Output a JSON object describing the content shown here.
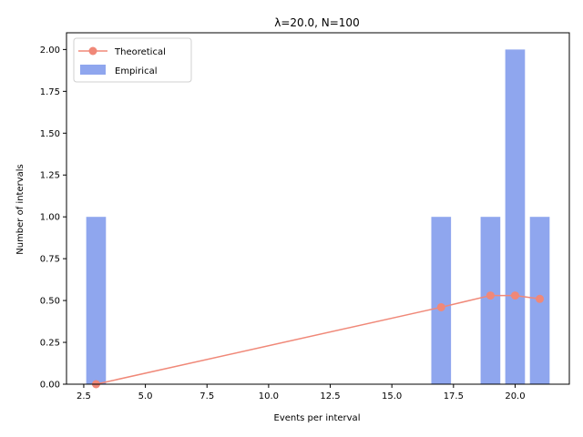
{
  "chart_data": {
    "type": "bar",
    "title": "λ=20.0, N=100",
    "xlabel": "Events per interval",
    "ylabel": "Number of intervals",
    "xlim": [
      1.8,
      22.2
    ],
    "ylim": [
      0.0,
      2.1
    ],
    "xticks": [
      2.5,
      5.0,
      7.5,
      10.0,
      12.5,
      15.0,
      17.5,
      20.0
    ],
    "xtick_labels": [
      "2.5",
      "5.0",
      "7.5",
      "10.0",
      "12.5",
      "15.0",
      "17.5",
      "20.0"
    ],
    "yticks": [
      0.0,
      0.25,
      0.5,
      0.75,
      1.0,
      1.25,
      1.5,
      1.75,
      2.0
    ],
    "ytick_labels": [
      "0.00",
      "0.25",
      "0.50",
      "0.75",
      "1.00",
      "1.25",
      "1.50",
      "1.75",
      "2.00"
    ],
    "grid": false,
    "legend_position": "top-left",
    "series": [
      {
        "name": "Empirical",
        "kind": "bar",
        "color": "#8fa6ee",
        "x": [
          3,
          17,
          19,
          20,
          21
        ],
        "values": [
          1,
          1,
          1,
          2,
          1
        ],
        "bar_width": 0.8
      },
      {
        "name": "Theoretical",
        "kind": "line",
        "color": "#f08878",
        "x": [
          3,
          17,
          19,
          20,
          21
        ],
        "values": [
          0.0,
          0.46,
          0.53,
          0.53,
          0.51
        ]
      }
    ]
  }
}
